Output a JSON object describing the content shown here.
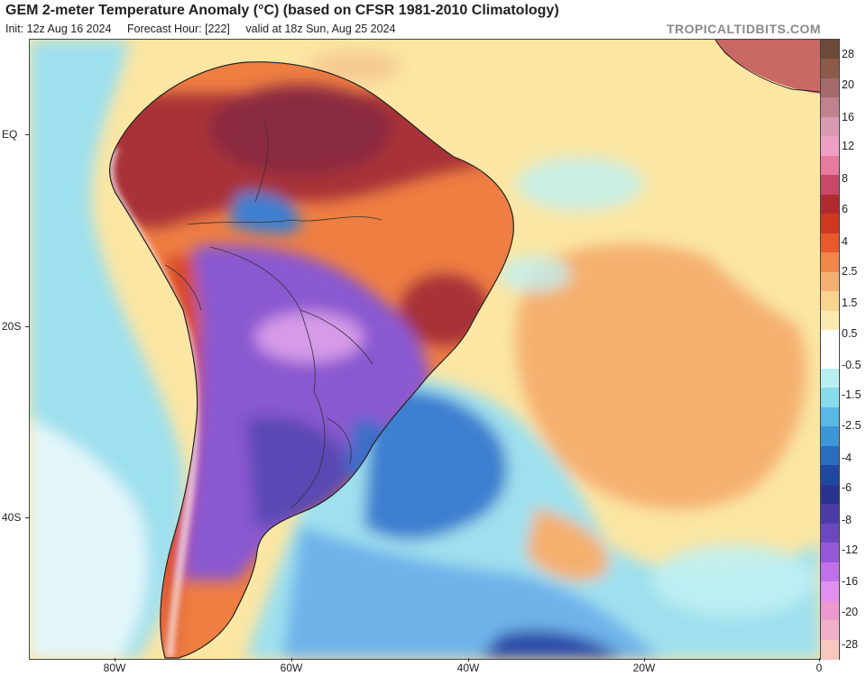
{
  "header": {
    "title": "GEM 2-meter Temperature Anomaly (°C) (based on CFSR 1981-2010 Climatology)",
    "init": "Init: 12z Aug 16 2024",
    "forecast_hour": "Forecast Hour: [222]",
    "valid": "valid at 18z Sun, Aug 25 2024",
    "brand": "TROPICALTIDBITS.COM"
  },
  "axes": {
    "lat_labels": [
      "EQ",
      "20S",
      "40S"
    ],
    "lon_labels": [
      "80W",
      "60W",
      "40W",
      "20W",
      "0"
    ]
  },
  "colorbar": {
    "labels": [
      "28",
      "20",
      "16",
      "12",
      "8",
      "6",
      "4",
      "2.5",
      "1.5",
      "0.5",
      "-0.5",
      "-1.5",
      "-2.5",
      "-4",
      "-6",
      "-8",
      "-12",
      "-16",
      "-20",
      "-28"
    ],
    "colors": [
      "#6e4a38",
      "#8c5a4a",
      "#a46a6a",
      "#c0828e",
      "#d89ab0",
      "#ef9fc4",
      "#e87aa0",
      "#c84868",
      "#b02a30",
      "#d03820",
      "#e85a2c",
      "#f2874a",
      "#f5b070",
      "#f8d48e",
      "#fbeab0",
      "#ffffff",
      "#ffffff",
      "#b8f0f2",
      "#86dcea",
      "#5ab8e6",
      "#3c96d8",
      "#2a6cc0",
      "#1e48a0",
      "#2a3490",
      "#4c3ca8",
      "#6c48c0",
      "#9658d8",
      "#c070e8",
      "#e090f0",
      "#ee98d0",
      "#f0b0c8",
      "#f6c8c0"
    ]
  },
  "map": {
    "background_color": "#fbe6a4",
    "ocean_colors": {
      "warm": "#f5b070",
      "cool": "#9fe0ee",
      "cold": "#3e7fd0"
    },
    "land_colors": {
      "hot": "#a83038",
      "warm": "#d8482a",
      "mild": "#ee7e42",
      "cold": "#8a58d0",
      "very_cold": "#5a48b4",
      "coast": "#ffffff"
    }
  }
}
